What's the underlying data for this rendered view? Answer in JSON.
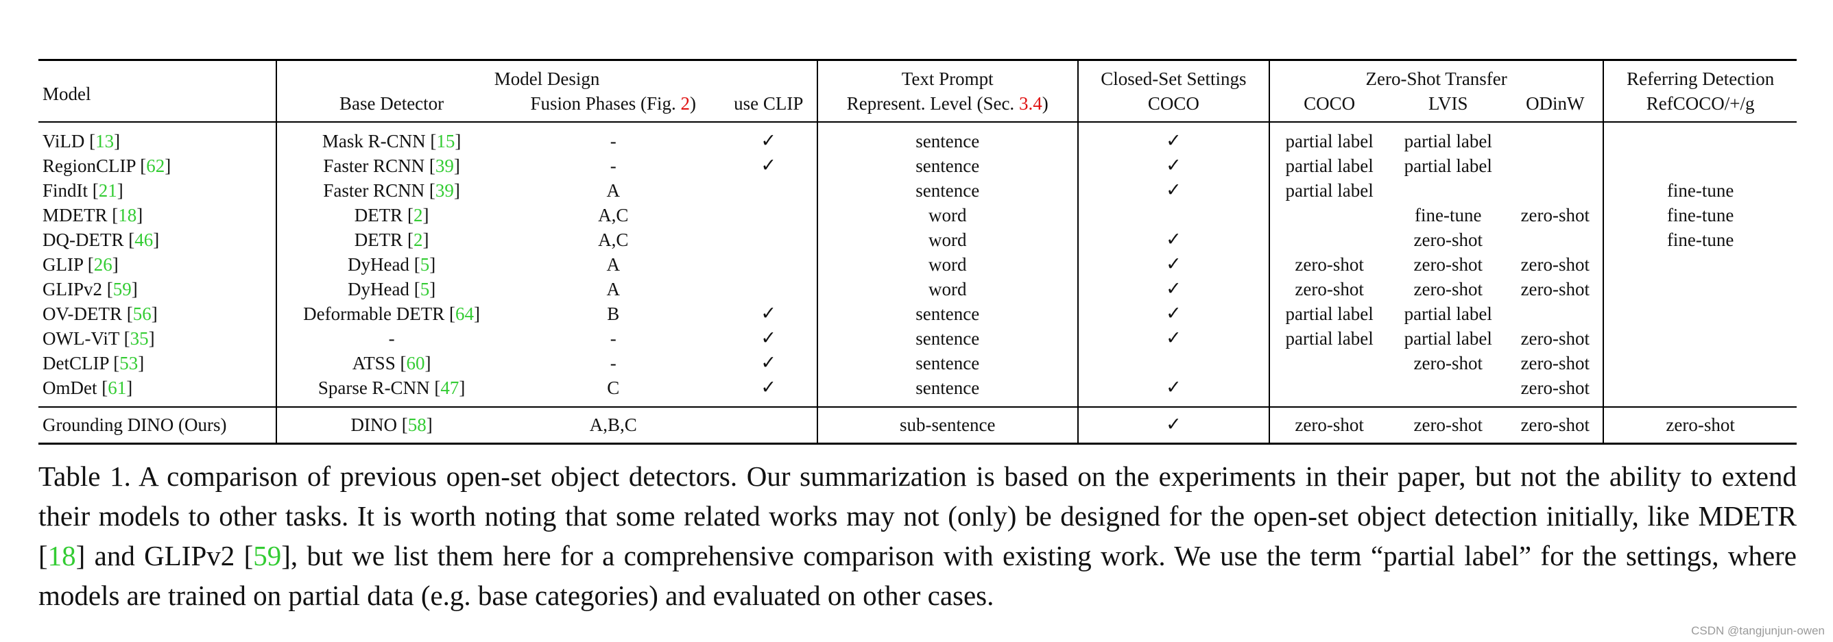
{
  "columns": {
    "model": "Model",
    "model_design": "Model Design",
    "base_detector": "Base Detector",
    "fusion_phases": "Fusion Phases (Fig. ",
    "fusion_ref": "2",
    "fusion_close": ")",
    "use_clip": "use CLIP",
    "text_prompt": "Text Prompt",
    "represent_level": "Represent. Level (Sec. ",
    "represent_ref": "3.4",
    "represent_close": ")",
    "closed_set": "Closed-Set Settings",
    "closed_coco": "COCO",
    "zero_shot": "Zero-Shot Transfer",
    "zs_coco": "COCO",
    "zs_lvis": "LVIS",
    "zs_odinw": "ODinW",
    "referring": "Referring Detection",
    "refcoco": "RefCOCO/+/g"
  },
  "rows": [
    {
      "model": "ViLD",
      "model_ref": "13",
      "base": "Mask R-CNN",
      "base_ref": "15",
      "fusion": "-",
      "clip": "✓",
      "level": "sentence",
      "closed": "✓",
      "coco": "partial label",
      "lvis": "partial label",
      "odinw": "",
      "ref": ""
    },
    {
      "model": "RegionCLIP",
      "model_ref": "62",
      "base": "Faster RCNN",
      "base_ref": "39",
      "fusion": "-",
      "clip": "✓",
      "level": "sentence",
      "closed": "✓",
      "coco": "partial label",
      "lvis": "partial label",
      "odinw": "",
      "ref": ""
    },
    {
      "model": "FindIt",
      "model_ref": "21",
      "base": "Faster RCNN",
      "base_ref": "39",
      "fusion": "A",
      "clip": "",
      "level": "sentence",
      "closed": "✓",
      "coco": "partial label",
      "lvis": "",
      "odinw": "",
      "ref": "fine-tune"
    },
    {
      "model": "MDETR",
      "model_ref": "18",
      "base": "DETR",
      "base_ref": "2",
      "fusion": "A,C",
      "clip": "",
      "level": "word",
      "closed": "",
      "coco": "",
      "lvis": "fine-tune",
      "odinw": "zero-shot",
      "ref": "fine-tune"
    },
    {
      "model": "DQ-DETR",
      "model_ref": "46",
      "base": "DETR",
      "base_ref": "2",
      "fusion": "A,C",
      "clip": "",
      "level": "word",
      "closed": "✓",
      "coco": "",
      "lvis": "zero-shot",
      "odinw": "",
      "ref": "fine-tune"
    },
    {
      "model": "GLIP",
      "model_ref": "26",
      "base": "DyHead",
      "base_ref": "5",
      "fusion": "A",
      "clip": "",
      "level": "word",
      "closed": "✓",
      "coco": "zero-shot",
      "lvis": "zero-shot",
      "odinw": "zero-shot",
      "ref": ""
    },
    {
      "model": "GLIPv2",
      "model_ref": "59",
      "base": "DyHead",
      "base_ref": "5",
      "fusion": "A",
      "clip": "",
      "level": "word",
      "closed": "✓",
      "coco": "zero-shot",
      "lvis": "zero-shot",
      "odinw": "zero-shot",
      "ref": ""
    },
    {
      "model": "OV-DETR",
      "model_ref": "56",
      "base": "Deformable DETR",
      "base_ref": "64",
      "fusion": "B",
      "clip": "✓",
      "level": "sentence",
      "closed": "✓",
      "coco": "partial label",
      "lvis": "partial label",
      "odinw": "",
      "ref": ""
    },
    {
      "model": "OWL-ViT",
      "model_ref": "35",
      "base": "-",
      "base_ref": "",
      "fusion": "-",
      "clip": "✓",
      "level": "sentence",
      "closed": "✓",
      "coco": "partial label",
      "lvis": "partial label",
      "odinw": "zero-shot",
      "ref": ""
    },
    {
      "model": "DetCLIP",
      "model_ref": "53",
      "base": "ATSS",
      "base_ref": "60",
      "fusion": "-",
      "clip": "✓",
      "level": "sentence",
      "closed": "",
      "coco": "",
      "lvis": "zero-shot",
      "odinw": "zero-shot",
      "ref": ""
    },
    {
      "model": "OmDet",
      "model_ref": "61",
      "base": "Sparse R-CNN",
      "base_ref": "47",
      "fusion": "C",
      "clip": "✓",
      "level": "sentence",
      "closed": "✓",
      "coco": "",
      "lvis": "",
      "odinw": "zero-shot",
      "ref": ""
    }
  ],
  "ours": {
    "model": "Grounding DINO (Ours)",
    "base": "DINO",
    "base_ref": "58",
    "fusion": "A,B,C",
    "clip": "",
    "level": "sub-sentence",
    "closed": "✓",
    "coco": "zero-shot",
    "lvis": "zero-shot",
    "odinw": "zero-shot",
    "ref": "zero-shot"
  },
  "caption": {
    "part1": "Table 1.  A comparison of previous open-set object detectors.  Our summarization is based on the experiments in their paper, but not the ability to extend their models to other tasks. It is worth noting that some related works may not (only) be designed for the open-set object detection initially, like MDETR [",
    "ref1": "18",
    "part2": "] and GLIPv2 [",
    "ref2": "59",
    "part3": "], but we list them here for a comprehensive comparison with existing work. We use the term “partial label” for the settings, where models are trained on partial data (e.g. base categories) and evaluated on other cases."
  },
  "watermark": "CSDN @tangjunjun-owen"
}
